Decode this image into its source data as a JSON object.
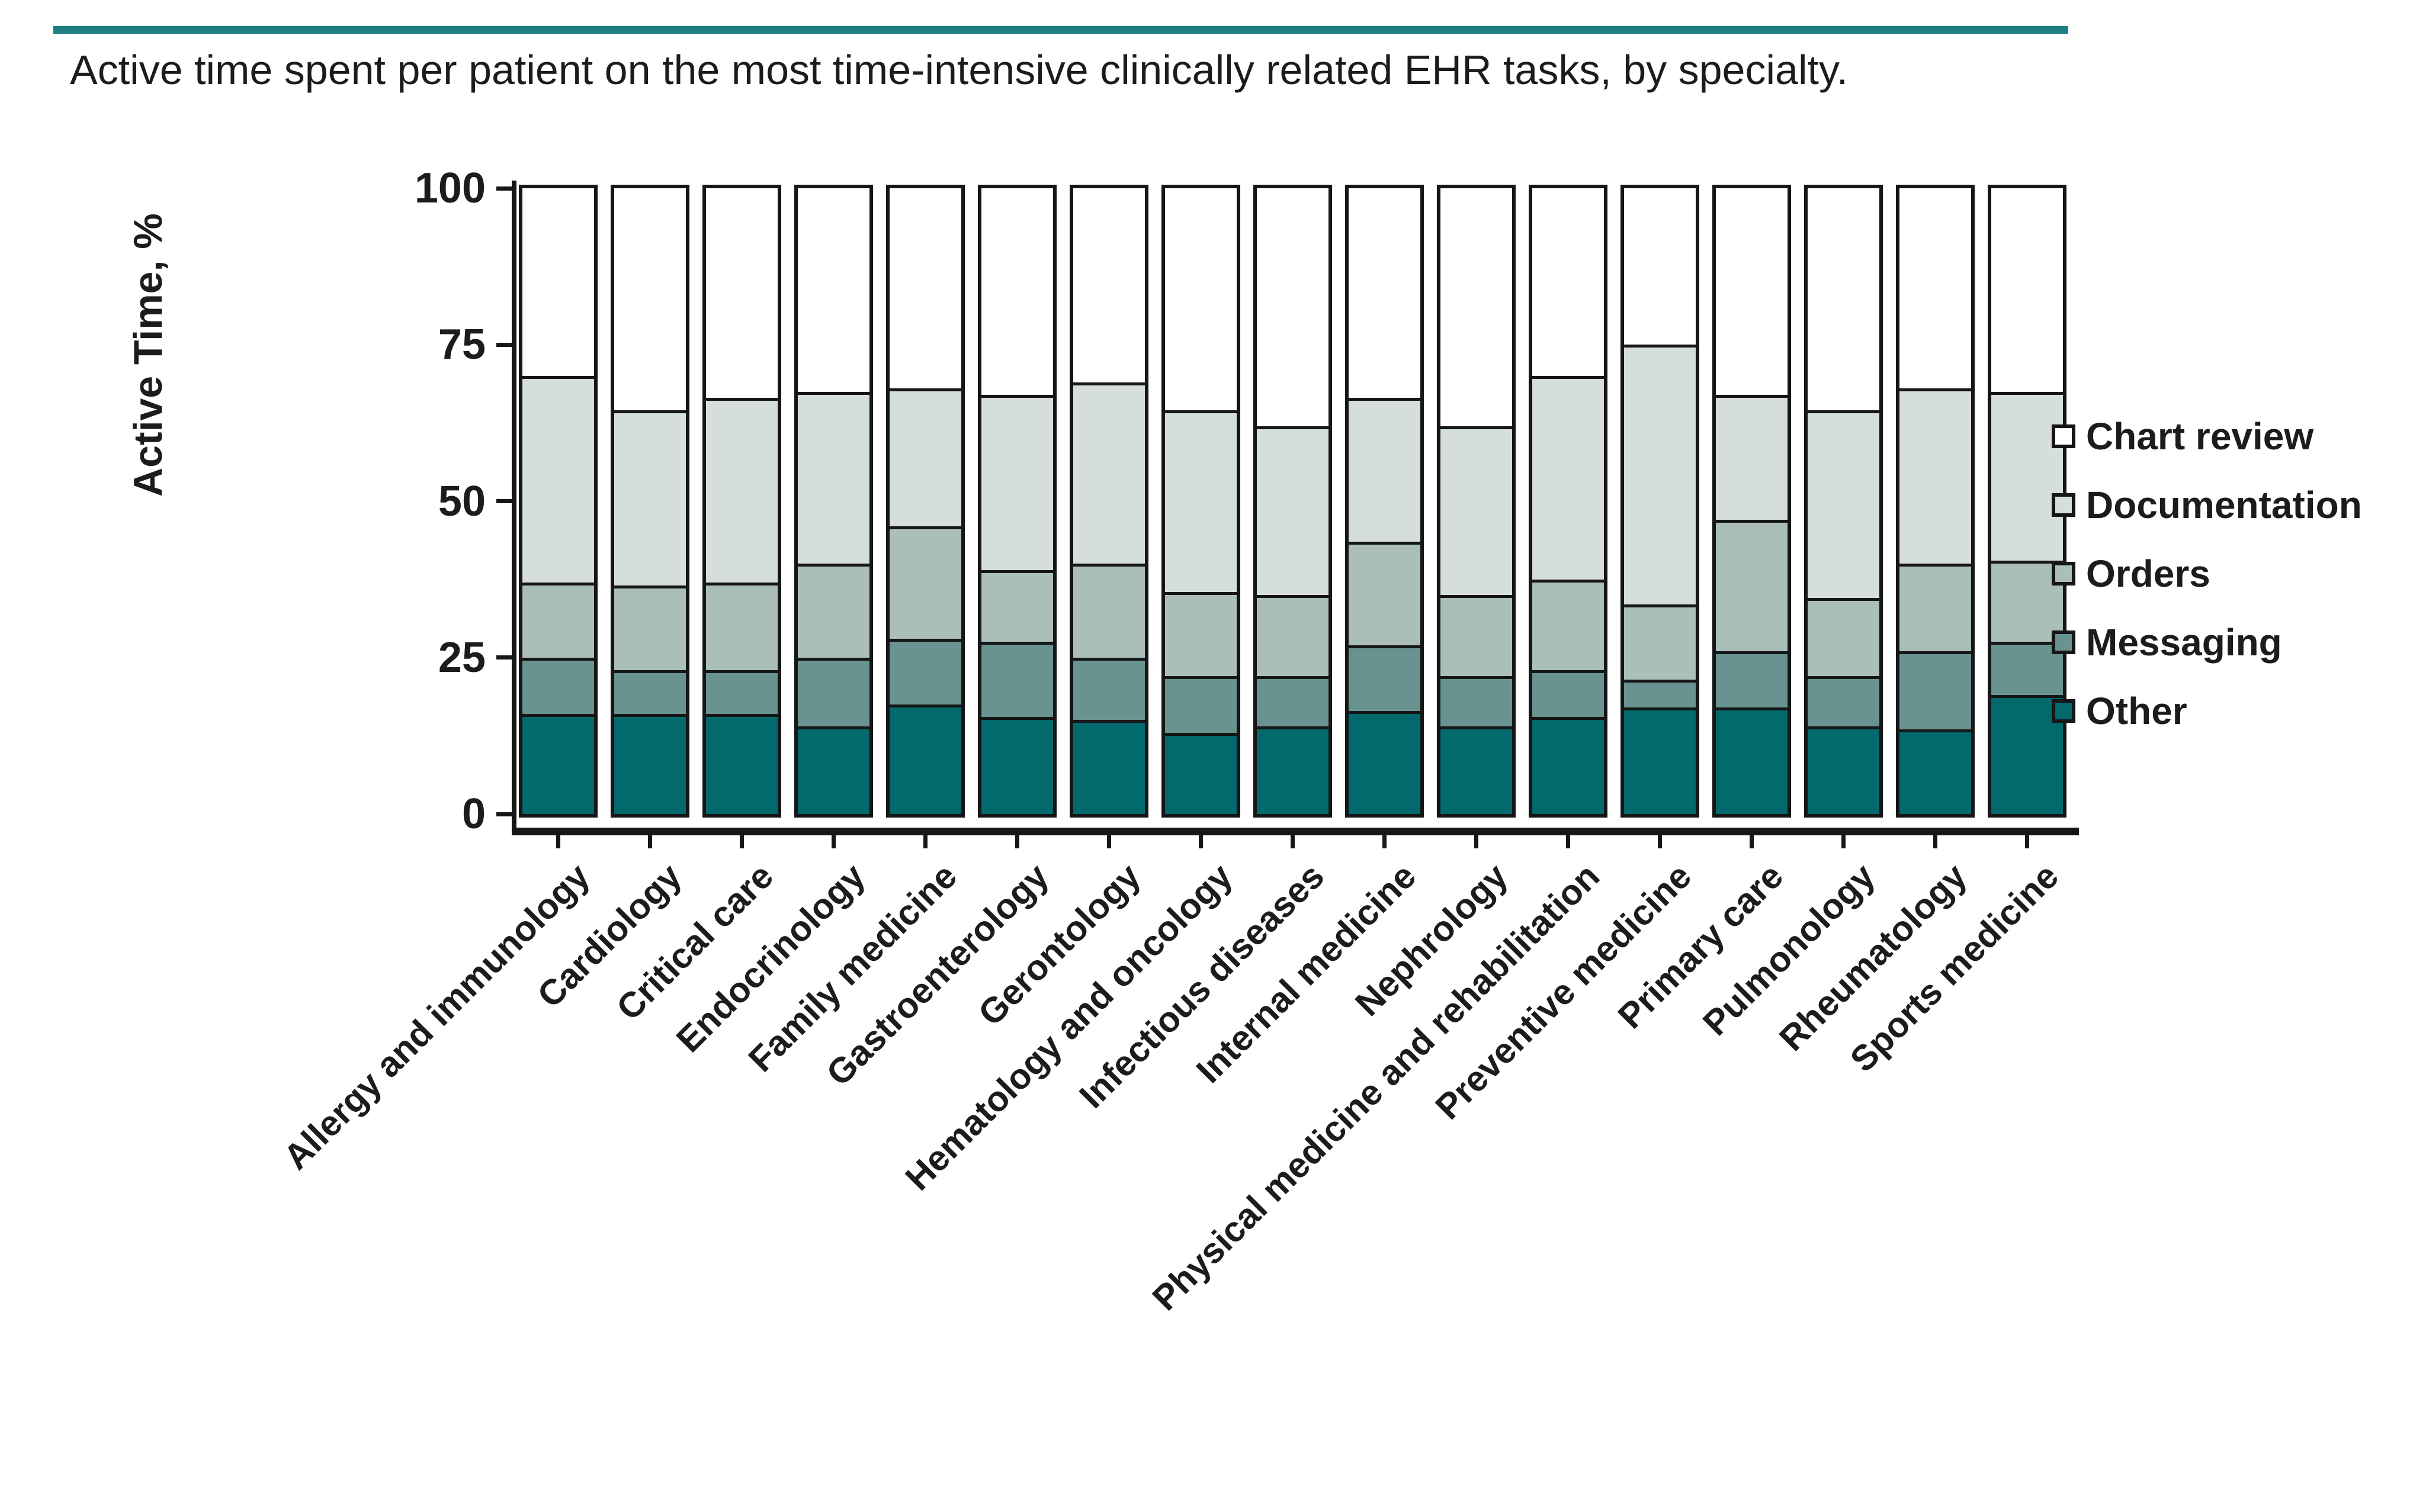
{
  "figure": {
    "title": "Active time spent per patient on the most time-intensive clinically related EHR tasks, by specialty.",
    "accent_rule_color": "#1d7e83"
  },
  "chart_data": {
    "type": "bar",
    "subtype": "stacked-percent",
    "title": "Active time spent per patient on the most time-intensive clinically related EHR tasks, by specialty.",
    "xlabel": "",
    "ylabel": "Active Time, %",
    "ylim": [
      0,
      100
    ],
    "yticks": [
      0,
      25,
      50,
      75,
      100
    ],
    "grid": false,
    "legend_position": "right",
    "categories": [
      "Allergy and immunology",
      "Cardiology",
      "Critical care",
      "Endocrinology",
      "Family medicine",
      "Gastroenterology",
      "Gerontology",
      "Hematology and oncology",
      "Infectious diseases",
      "Internal medicine",
      "Nephrology",
      "Physical medicine and rehabilitation",
      "Preventive medicine",
      "Primary care",
      "Pulmonology",
      "Rheumatology",
      "Sports medicine"
    ],
    "series": [
      {
        "name": "Other",
        "color": "#02696d",
        "values": [
          16,
          16,
          16,
          14,
          17.5,
          15.5,
          15,
          13,
          14,
          16.5,
          14,
          15.5,
          17,
          17,
          14,
          13.5,
          19
        ]
      },
      {
        "name": "Messaging",
        "color": "#689390",
        "values": [
          9,
          7,
          7,
          11,
          10.5,
          12,
          10,
          9,
          8,
          10.5,
          8,
          7.5,
          4.5,
          9,
          8,
          12.5,
          8.5
        ]
      },
      {
        "name": "Orders",
        "color": "#abbfba",
        "values": [
          12,
          13.5,
          14,
          15,
          18,
          11.5,
          15,
          13.5,
          13,
          16.5,
          13,
          14.5,
          12,
          21,
          12.5,
          14,
          13
        ]
      },
      {
        "name": "Documentation",
        "color": "#d6ded9",
        "values": [
          33,
          28,
          29.5,
          27.5,
          22,
          28,
          29,
          29,
          27,
          23,
          27,
          32.5,
          41.5,
          20,
          30,
          28,
          27
        ]
      },
      {
        "name": "Chart review",
        "color": "#ffffff",
        "values": [
          30,
          35.5,
          33.5,
          32.5,
          32,
          33,
          31,
          35.5,
          38,
          33.5,
          38,
          30,
          25,
          33,
          35.5,
          32,
          32.5
        ]
      }
    ],
    "legend": [
      {
        "label": "Chart review",
        "color": "#ffffff"
      },
      {
        "label": "Documentation",
        "color": "#d6ded9"
      },
      {
        "label": "Orders",
        "color": "#abbfba"
      },
      {
        "label": "Messaging",
        "color": "#689390"
      },
      {
        "label": "Other",
        "color": "#02696d"
      }
    ]
  }
}
